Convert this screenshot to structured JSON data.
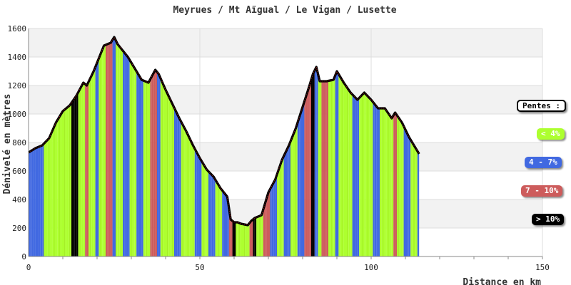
{
  "chart_data": {
    "type": "area",
    "title": "Meyrues / Mt Aïgual / Le Vigan / Lusette",
    "xlabel": "Distance en km",
    "ylabel": "Dénivelé en mètres",
    "xlim": [
      0,
      150
    ],
    "ylim": [
      0,
      1600
    ],
    "xticks": [
      0,
      50,
      100,
      150
    ],
    "yticks": [
      0,
      200,
      400,
      600,
      800,
      1000,
      1200,
      1400,
      1600
    ],
    "x": [
      0,
      2,
      4,
      6,
      8,
      10,
      12,
      14,
      16,
      17,
      19,
      20,
      22,
      24,
      25,
      26,
      27,
      29,
      31,
      33,
      35,
      37,
      38,
      40,
      42,
      44,
      46,
      48,
      50,
      52,
      54,
      56,
      58,
      59,
      60,
      61,
      62,
      64,
      65,
      66,
      68,
      70,
      72,
      74,
      76,
      78,
      80,
      82,
      83,
      84,
      85,
      87,
      89,
      90,
      92,
      94,
      96,
      98,
      100,
      102,
      104,
      106,
      107,
      109,
      111,
      113,
      114
    ],
    "y": [
      730,
      760,
      780,
      830,
      940,
      1020,
      1060,
      1130,
      1220,
      1200,
      1300,
      1360,
      1480,
      1500,
      1540,
      1490,
      1460,
      1400,
      1320,
      1240,
      1220,
      1310,
      1280,
      1170,
      1070,
      970,
      880,
      780,
      690,
      610,
      560,
      480,
      420,
      260,
      240,
      240,
      230,
      220,
      250,
      270,
      290,
      450,
      540,
      680,
      780,
      900,
      1050,
      1200,
      1280,
      1330,
      1230,
      1230,
      1240,
      1300,
      1220,
      1150,
      1100,
      1150,
      1100,
      1040,
      1040,
      970,
      1010,
      940,
      840,
      760,
      720
    ],
    "color_bands": [
      "4-7%",
      "4-7%",
      "<4%",
      "<4%",
      "<4%",
      "<4%",
      ">10%",
      "<4%",
      "7-10%",
      "<4%",
      "4-7%",
      "<4%",
      "7-10%",
      "4-7%",
      "<4%",
      "<4%",
      "4-7%",
      "<4%",
      "4-7%",
      "<4%",
      "7-10%",
      "4-7%",
      "<4%",
      "<4%",
      "4-7%",
      "<4%",
      "<4%",
      "4-7%",
      "<4%",
      "4-7%",
      "<4%",
      "4-7%",
      "7-10%",
      ">10%",
      "<4%",
      "<4%",
      "<4%",
      "7-10%",
      ">10%",
      "<4%",
      "7-10%",
      "4-7%",
      "<4%",
      "4-7%",
      "<4%",
      "4-7%",
      "7-10%",
      ">10%",
      "4-7%",
      "<4%",
      "7-10%",
      "<4%",
      "4-7%",
      "<4%",
      "<4%",
      "4-7%",
      "<4%",
      "<4%",
      "4-7%",
      "<4%",
      "<4%",
      "7-10%",
      "<4%",
      "4-7%",
      "<4%",
      "4-7%"
    ],
    "grid": true,
    "legend": {
      "placement": "right",
      "title": "Pentes :",
      "items": [
        {
          "label": "< 4%",
          "key": "<4%",
          "bg": "#adff2f",
          "fg": "#ffffff"
        },
        {
          "label": "4 - 7%",
          "key": "4-7%",
          "bg": "#4169e1",
          "fg": "#ffffff"
        },
        {
          "label": "7 - 10%",
          "key": "7-10%",
          "bg": "#cd5c5c",
          "fg": "#ffffff"
        },
        {
          "label": "> 10%",
          "key": ">10%",
          "bg": "#000000",
          "fg": "#ffffff"
        }
      ]
    }
  }
}
